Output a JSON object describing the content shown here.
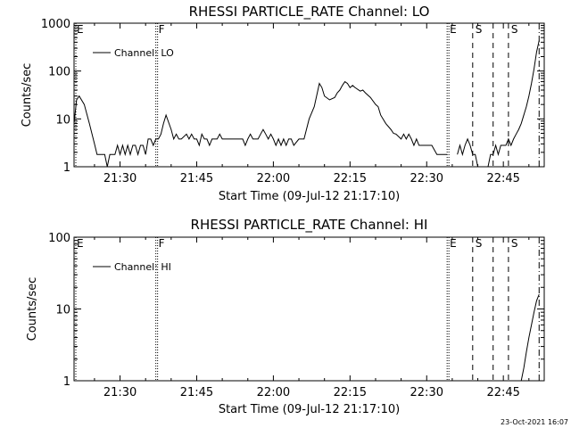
{
  "chart_data": [
    {
      "type": "line",
      "title": "RHESSI PARTICLE_RATE Channel: LO",
      "xlabel": "Start Time (09-Jul-12 21:17:10)",
      "ylabel": "Counts/sec",
      "yscale": "log",
      "ylim": [
        1,
        1000
      ],
      "yticks": [
        "1",
        "10",
        "100",
        "1000"
      ],
      "xlim": [
        "21:21",
        "22:53"
      ],
      "xticks": [
        "21:30",
        "21:45",
        "22:00",
        "22:15",
        "22:30",
        "22:45"
      ],
      "grid": false,
      "legend": {
        "label": "Channel: LO",
        "placement": "top-left"
      },
      "markers": [
        {
          "label": "E",
          "time": "21:21",
          "style": "dotted"
        },
        {
          "label": "F",
          "time": "21:37",
          "style": "dotted"
        },
        {
          "label": "E",
          "time": "22:34",
          "style": "dotted"
        },
        {
          "label": "S",
          "time": "22:39",
          "style": "dashed"
        },
        {
          "label": "",
          "time": "22:43",
          "style": "dashed"
        },
        {
          "label": "S",
          "time": "22:46",
          "style": "dashed"
        },
        {
          "label": "",
          "time": "22:52",
          "style": "dashdot"
        }
      ],
      "series": [
        {
          "name": "Channel: LO",
          "segments": [
            {
              "points": [
                [
                  "21:21",
                  8
                ],
                [
                  "21:21.5",
                  25
                ],
                [
                  "21:22",
                  30
                ],
                [
                  "21:23",
                  20
                ],
                [
                  "21:24",
                  8
                ],
                [
                  "21:25",
                  3
                ],
                [
                  "21:25.5",
                  1.8
                ],
                [
                  "21:27",
                  1.8
                ],
                [
                  "21:27.5",
                  1
                ],
                [
                  "21:28",
                  1.8
                ],
                [
                  "21:29",
                  1.8
                ],
                [
                  "21:29.5",
                  2.8
                ],
                [
                  "21:30",
                  1.8
                ],
                [
                  "21:30.5",
                  2.8
                ],
                [
                  "21:31",
                  1.8
                ],
                [
                  "21:31.5",
                  2.8
                ],
                [
                  "21:32",
                  1.8
                ],
                [
                  "21:32.5",
                  2.8
                ],
                [
                  "21:33",
                  2.8
                ],
                [
                  "21:33.5",
                  1.8
                ],
                [
                  "21:34",
                  2.8
                ],
                [
                  "21:34.5",
                  2.8
                ],
                [
                  "21:35",
                  1.8
                ],
                [
                  "21:35.5",
                  3.8
                ],
                [
                  "21:36",
                  3.8
                ],
                [
                  "21:36.5",
                  2.8
                ],
                [
                  "21:37",
                  3.8
                ],
                [
                  "21:37.5",
                  3.8
                ],
                [
                  "21:38",
                  4.8
                ],
                [
                  "21:38.5",
                  8
                ],
                [
                  "21:39",
                  12
                ],
                [
                  "21:40",
                  6
                ],
                [
                  "21:40.5",
                  3.8
                ],
                [
                  "21:41",
                  4.8
                ],
                [
                  "21:41.5",
                  3.8
                ],
                [
                  "21:42",
                  3.8
                ],
                [
                  "21:43",
                  4.8
                ],
                [
                  "21:43.5",
                  3.8
                ],
                [
                  "21:44",
                  4.8
                ],
                [
                  "21:44.5",
                  3.8
                ],
                [
                  "21:45",
                  3.8
                ],
                [
                  "21:45.5",
                  2.8
                ],
                [
                  "21:46",
                  4.8
                ],
                [
                  "21:46.5",
                  3.8
                ],
                [
                  "21:47",
                  3.8
                ],
                [
                  "21:47.5",
                  2.8
                ],
                [
                  "21:48",
                  3.8
                ],
                [
                  "21:48.5",
                  3.8
                ],
                [
                  "21:49",
                  3.8
                ],
                [
                  "21:49.5",
                  4.8
                ],
                [
                  "21:50",
                  3.8
                ],
                [
                  "21:51",
                  3.8
                ],
                [
                  "21:52",
                  3.8
                ],
                [
                  "21:53",
                  3.8
                ],
                [
                  "21:54",
                  3.8
                ],
                [
                  "21:54.5",
                  2.8
                ],
                [
                  "21:55",
                  3.8
                ],
                [
                  "21:55.5",
                  4.8
                ],
                [
                  "21:56",
                  3.8
                ],
                [
                  "21:57",
                  3.8
                ],
                [
                  "21:57.5",
                  4.8
                ],
                [
                  "21:58",
                  6
                ],
                [
                  "21:58.5",
                  4.8
                ],
                [
                  "21:59",
                  3.8
                ],
                [
                  "21:59.5",
                  4.8
                ],
                [
                  "22:00",
                  3.8
                ],
                [
                  "22:00.5",
                  2.8
                ],
                [
                  "22:01",
                  3.8
                ],
                [
                  "22:01.5",
                  2.8
                ],
                [
                  "22:02",
                  3.8
                ],
                [
                  "22:02.5",
                  2.8
                ],
                [
                  "22:03",
                  3.8
                ],
                [
                  "22:03.5",
                  3.8
                ],
                [
                  "22:04",
                  2.8
                ],
                [
                  "22:05",
                  3.8
                ],
                [
                  "22:06",
                  3.8
                ],
                [
                  "22:07",
                  10
                ],
                [
                  "22:08",
                  18
                ],
                [
                  "22:09",
                  55
                ],
                [
                  "22:09.5",
                  45
                ],
                [
                  "22:10",
                  30
                ],
                [
                  "22:11",
                  25
                ],
                [
                  "22:12",
                  28
                ],
                [
                  "22:12.5",
                  35
                ],
                [
                  "22:13",
                  40
                ],
                [
                  "22:13.5",
                  50
                ],
                [
                  "22:14",
                  60
                ],
                [
                  "22:14.5",
                  55
                ],
                [
                  "22:15",
                  45
                ],
                [
                  "22:15.5",
                  50
                ],
                [
                  "22:16",
                  45
                ],
                [
                  "22:17",
                  38
                ],
                [
                  "22:17.5",
                  40
                ],
                [
                  "22:18",
                  35
                ],
                [
                  "22:19",
                  28
                ],
                [
                  "22:20",
                  20
                ],
                [
                  "22:20.5",
                  18
                ],
                [
                  "22:21",
                  12
                ],
                [
                  "22:22",
                  8
                ],
                [
                  "22:23",
                  6
                ],
                [
                  "22:23.5",
                  5
                ],
                [
                  "22:24",
                  4.8
                ],
                [
                  "22:25",
                  3.8
                ],
                [
                  "22:25.5",
                  4.8
                ],
                [
                  "22:26",
                  3.8
                ],
                [
                  "22:26.5",
                  4.8
                ],
                [
                  "22:27",
                  3.8
                ],
                [
                  "22:27.5",
                  2.8
                ],
                [
                  "22:28",
                  3.8
                ],
                [
                  "22:28.5",
                  2.8
                ],
                [
                  "22:29",
                  2.8
                ],
                [
                  "22:30",
                  2.8
                ],
                [
                  "22:31",
                  2.8
                ],
                [
                  "22:32",
                  1.8
                ],
                [
                  "22:33",
                  1.8
                ],
                [
                  "22:34",
                  1.8
                ]
              ]
            },
            {
              "points": [
                [
                  "22:36",
                  1.8
                ],
                [
                  "22:36.5",
                  2.8
                ],
                [
                  "22:37",
                  1.8
                ],
                [
                  "22:37.5",
                  2.8
                ],
                [
                  "22:38",
                  3.8
                ],
                [
                  "22:38.5",
                  2.8
                ],
                [
                  "22:39",
                  1.8
                ],
                [
                  "22:39.5",
                  1.8
                ],
                [
                  "22:40",
                  1
                ]
              ]
            },
            {
              "points": [
                [
                  "22:42",
                  1
                ],
                [
                  "22:42.5",
                  1.8
                ],
                [
                  "22:43",
                  1.8
                ],
                [
                  "22:43.5",
                  2.8
                ],
                [
                  "22:44",
                  1.8
                ],
                [
                  "22:44.5",
                  2.8
                ],
                [
                  "22:45",
                  2.8
                ],
                [
                  "22:45.5",
                  2.8
                ],
                [
                  "22:46",
                  3.8
                ],
                [
                  "22:46.5",
                  2.8
                ],
                [
                  "22:47",
                  3.8
                ],
                [
                  "22:47.5",
                  4.8
                ],
                [
                  "22:48",
                  6
                ],
                [
                  "22:48.5",
                  8
                ],
                [
                  "22:49",
                  12
                ],
                [
                  "22:49.5",
                  18
                ],
                [
                  "22:50",
                  30
                ],
                [
                  "22:50.5",
                  55
                ],
                [
                  "22:51",
                  110
                ],
                [
                  "22:51.5",
                  250
                ],
                [
                  "22:52",
                  430
                ]
              ]
            }
          ]
        }
      ]
    },
    {
      "type": "line",
      "title": "RHESSI PARTICLE_RATE Channel: HI",
      "xlabel": "Start Time (09-Jul-12 21:17:10)",
      "ylabel": "Counts/sec",
      "yscale": "log",
      "ylim": [
        1,
        100
      ],
      "yticks": [
        "1",
        "10",
        "100"
      ],
      "xlim": [
        "21:21",
        "22:53"
      ],
      "xticks": [
        "21:30",
        "21:45",
        "22:00",
        "22:15",
        "22:30",
        "22:45"
      ],
      "grid": false,
      "legend": {
        "label": "Channel: HI",
        "placement": "top-left"
      },
      "markers": [
        {
          "label": "E",
          "time": "21:21",
          "style": "dotted"
        },
        {
          "label": "F",
          "time": "21:37",
          "style": "dotted"
        },
        {
          "label": "E",
          "time": "22:34",
          "style": "dotted"
        },
        {
          "label": "S",
          "time": "22:39",
          "style": "dashed"
        },
        {
          "label": "",
          "time": "22:43",
          "style": "dashed"
        },
        {
          "label": "S",
          "time": "22:46",
          "style": "dashed"
        },
        {
          "label": "",
          "time": "22:52",
          "style": "dashdot"
        }
      ],
      "series": [
        {
          "name": "Channel: HI",
          "segments": [
            {
              "points": [
                [
                  "22:48.5",
                  1
                ],
                [
                  "22:49",
                  1.5
                ],
                [
                  "22:49.5",
                  2.5
                ],
                [
                  "22:50",
                  4
                ],
                [
                  "22:50.5",
                  6
                ],
                [
                  "22:51",
                  9
                ],
                [
                  "22:51.5",
                  13
                ],
                [
                  "22:52",
                  16
                ]
              ]
            }
          ]
        }
      ]
    }
  ],
  "footer": {
    "timestamp": "23-Oct-2021 16:07"
  }
}
